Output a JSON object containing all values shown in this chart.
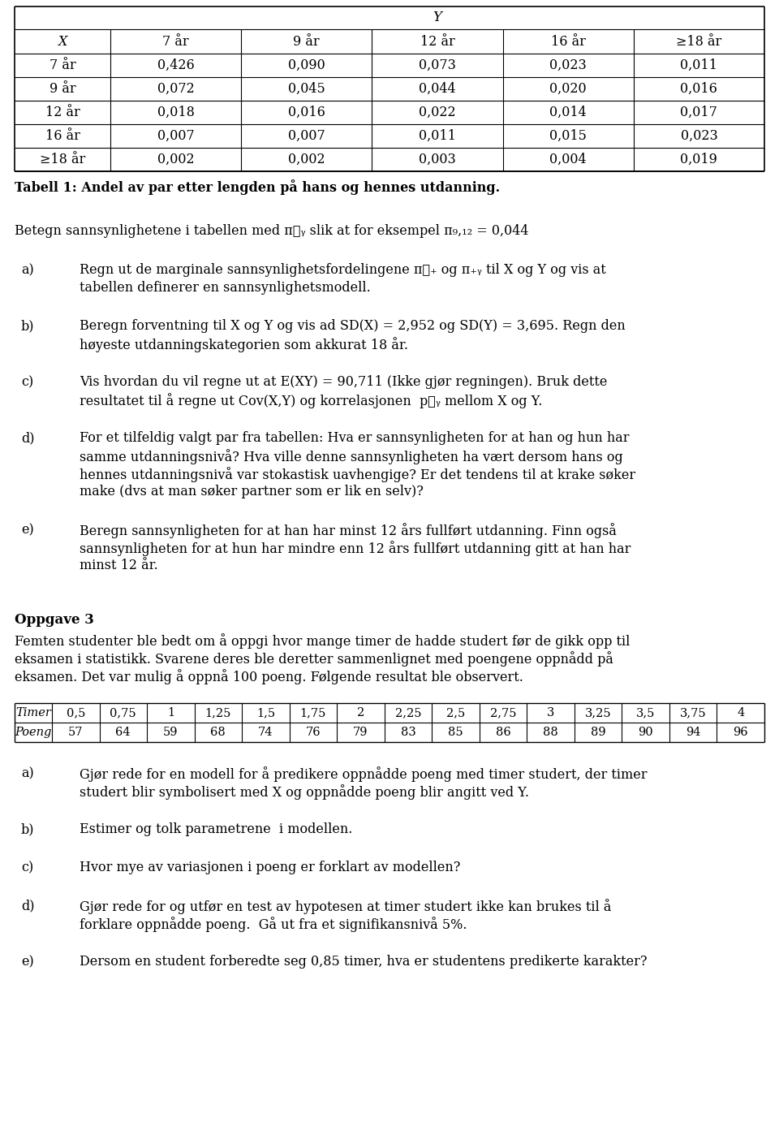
{
  "bg_color": "#ffffff",
  "table1_col_header": [
    "7 år",
    "9 år",
    "12 år",
    "16 år",
    "≥18 år"
  ],
  "table1_row_header": [
    "X",
    "7 år",
    "9 år",
    "12 år",
    "16 år",
    "≥18 år"
  ],
  "table1_data": [
    [
      0.426,
      0.09,
      0.073,
      0.023,
      0.011
    ],
    [
      0.072,
      0.045,
      0.044,
      0.02,
      0.016
    ],
    [
      0.018,
      0.016,
      0.022,
      0.014,
      0.017
    ],
    [
      0.007,
      0.007,
      0.011,
      0.015,
      0.023
    ],
    [
      0.002,
      0.002,
      0.003,
      0.004,
      0.019
    ]
  ],
  "table1_caption": "Tabell 1: Andel av par etter lengden på hans og hennes utdanning.",
  "intro": "Betegn sannsynlighetene i tabellen med πᵯᵧ slik at for eksempel π₉,₁₂ = 0,044",
  "a_lines": [
    "Regn ut de marginale sannsynlighetsfordelingene πᵯ₊ og π₊ᵧ til X og Y og vis at",
    "tabellen definerer en sannsynlighetsmodell."
  ],
  "b_lines": [
    "Beregn forventning til X og Y og vis ad SD(X) = 2,952 og SD(Y) = 3,695. Regn den",
    "høyeste utdanningskategorien som akkurat 18 år."
  ],
  "c_lines": [
    "Vis hvordan du vil regne ut at E(XY) = 90,711 (Ikke gjør regningen). Bruk dette",
    "resultatet til å regne ut Cov(X,Y) og korrelasjonen  pᵯᵧ mellom X og Y."
  ],
  "d_lines": [
    "For et tilfeldig valgt par fra tabellen: Hva er sannsynligheten for at han og hun har",
    "samme utdanningsnivå? Hva ville denne sannsynligheten ha vært dersom hans og",
    "hennes utdanningsnivå var stokastisk uavhengige? Er det tendens til at krake søker",
    "make (dvs at man søker partner som er lik en selv)?"
  ],
  "e_lines": [
    "Beregn sannsynligheten for at han har minst 12 års fullført utdanning. Finn også",
    "sannsynligheten for at hun har mindre enn 12 års fullført utdanning gitt at han har",
    "minst 12 år."
  ],
  "oppgave3_title": "Oppgave 3",
  "oppgave3_intro": [
    "Femten studenter ble bedt om å oppgi hvor mange timer de hadde studert før de gikk opp til",
    "eksamen i statistikk. Svarene deres ble deretter sammenlignet med poengene oppnådd på",
    "eksamen. Det var mulig å oppnå 100 poeng. Følgende resultat ble observert."
  ],
  "table2_timer": [
    "0,5",
    "0,75",
    "1",
    "1,25",
    "1,5",
    "1,75",
    "2",
    "2,25",
    "2,5",
    "2,75",
    "3",
    "3,25",
    "3,5",
    "3,75",
    "4"
  ],
  "table2_poeng": [
    "57",
    "64",
    "59",
    "68",
    "74",
    "76",
    "79",
    "83",
    "85",
    "86",
    "88",
    "89",
    "90",
    "94",
    "96"
  ],
  "opp3_a_lines": [
    "Gjør rede for en modell for å predikere oppnådde poeng med timer studert, der timer",
    "studert blir symbolisert med X og oppnådde poeng blir angitt ved Y."
  ],
  "opp3_b": "Estimer og tolk parametrene  i modellen.",
  "opp3_c": "Hvor mye av variasjonen i poeng er forklart av modellen?",
  "opp3_d_lines": [
    "Gjør rede for og utfør en test av hypotesen at timer studert ikke kan brukes til å",
    "forklare oppnådde poeng.  Gå ut fra et signifikansnivå 5%."
  ],
  "opp3_e": "Dersom en student forberedte seg 0,85 timer, hva er studentens predikerte karakter?"
}
